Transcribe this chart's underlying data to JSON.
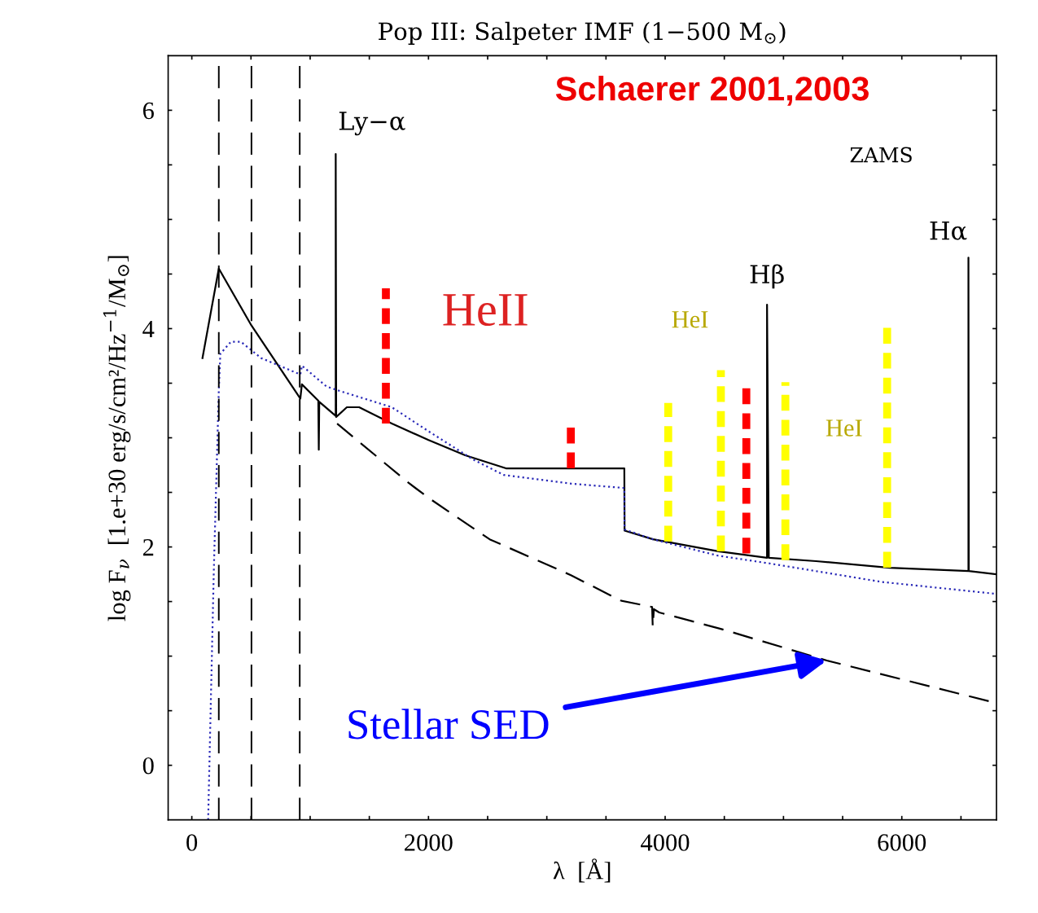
{
  "chart_data": {
    "type": "line",
    "title": "Pop III: Salpeter IMF (1−500 M$_{⊙}$)",
    "xlabel": "λ  [Å]",
    "ylabel": "log F$_{ν}$  [1.e+30 erg/s/cm²/Hz$^{−1}$/M$_{⊙}$]",
    "xlim": [
      -200,
      6800
    ],
    "ylim": [
      -0.5,
      6.5
    ],
    "xticks": [
      0,
      {
        "value": 500,
        "label": null
      },
      {
        "value": 1000,
        "label": null
      },
      {
        "value": 1500,
        "label": null
      },
      2000,
      {
        "value": 2500,
        "label": null
      },
      {
        "value": 3000,
        "label": null
      },
      {
        "value": 3500,
        "label": null
      },
      4000,
      {
        "value": 4500,
        "label": null
      },
      {
        "value": 5000,
        "label": null
      },
      {
        "value": 5500,
        "label": null
      },
      6000,
      {
        "value": 6500,
        "label": null
      }
    ],
    "yticks": [
      0,
      {
        "value": 0.5,
        "label": null
      },
      {
        "value": 1,
        "label": null
      },
      {
        "value": 1.5,
        "label": null
      },
      2,
      {
        "value": 2.5,
        "label": null
      },
      {
        "value": 3,
        "label": null
      },
      {
        "value": 3.5,
        "label": null
      },
      4,
      {
        "value": 4.5,
        "label": null
      },
      {
        "value": 5,
        "label": null
      },
      {
        "value": 5.5,
        "label": null
      },
      6
    ],
    "grid": false,
    "series": [
      {
        "color": "#000000",
        "line_style": "solid",
        "x": [
          90,
          228,
          503,
          917,
          930,
          1069,
          1073,
          1077,
          1216,
          1216,
          1220,
          1310,
          1414,
          1690,
          2000,
          2310,
          2655,
          3207,
          3655,
          3657,
          3897,
          4448,
          4861,
          4861,
          4876,
          5276,
          5897,
          6563,
          6563,
          6566,
          6800
        ],
        "values": [
          3.73,
          4.55,
          4.03,
          3.36,
          3.49,
          3.34,
          2.89,
          3.33,
          3.2,
          5.6,
          3.19,
          3.28,
          3.28,
          3.13,
          2.98,
          2.84,
          2.72,
          2.72,
          2.72,
          2.15,
          2.07,
          1.96,
          1.9,
          4.22,
          1.9,
          1.87,
          1.81,
          1.78,
          4.65,
          1.78,
          1.75
        ]
      },
      {
        "color": "#2a2ab8",
        "line_style": "dotted",
        "x": [
          138,
          186,
          228,
          241,
          331,
          414,
          586,
          917,
          931,
          1138,
          1276,
          1690,
          2000,
          2379,
          2634,
          3207,
          3655,
          3657,
          3897,
          4448,
          4876,
          5828,
          6800
        ],
        "values": [
          -0.5,
          1.79,
          3.43,
          3.77,
          3.88,
          3.88,
          3.73,
          3.58,
          3.66,
          3.47,
          3.42,
          3.28,
          3.06,
          2.8,
          2.66,
          2.58,
          2.54,
          2.16,
          2.07,
          1.92,
          1.85,
          1.68,
          1.57
        ]
      },
      {
        "color": "#000000",
        "line_style": "dashed",
        "x": [
          1228,
          1828,
          2000,
          2517,
          3207,
          3621,
          3890,
          3895,
          3905,
          3950,
          4469,
          5366,
          6800
        ],
        "values": [
          3.13,
          2.59,
          2.45,
          2.07,
          1.74,
          1.51,
          1.45,
          1.27,
          1.43,
          1.4,
          1.25,
          0.96,
          0.57
        ]
      },
      {
        "color": "#ff0000",
        "line_style": "dashed",
        "x": [
          1640,
          1640
        ],
        "values": [
          3.13,
          4.37
        ]
      },
      {
        "color": "#ff0000",
        "line_style": "dashed",
        "x": [
          3203,
          3203
        ],
        "values": [
          2.72,
          3.13
        ]
      },
      {
        "color": "#ff0000",
        "line_style": "dashed",
        "x": [
          4686,
          4686
        ],
        "values": [
          1.94,
          3.47
        ]
      },
      {
        "color": "#ffff00",
        "line_style": "dashed",
        "x": [
          4026,
          4026
        ],
        "values": [
          2.05,
          3.32
        ]
      },
      {
        "color": "#ffff00",
        "line_style": "dashed",
        "x": [
          4471,
          4471
        ],
        "values": [
          1.96,
          3.62
        ]
      },
      {
        "color": "#ffff00",
        "line_style": "dashed",
        "x": [
          5016,
          5016
        ],
        "values": [
          1.88,
          3.51
        ]
      },
      {
        "color": "#ffff00",
        "line_style": "dashed",
        "x": [
          5876,
          5876
        ],
        "values": [
          1.81,
          4.07
        ]
      }
    ],
    "ref_lines": [
      {
        "axis": "x",
        "value": 228,
        "color": "#000000",
        "line_style": "dashed"
      },
      {
        "axis": "x",
        "value": 504,
        "color": "#000000",
        "line_style": "dashed"
      },
      {
        "axis": "x",
        "value": 912,
        "color": "#000000",
        "line_style": "dashed"
      }
    ],
    "annotations": [
      "Schaerer 2001,2003",
      "ZAMS",
      "HeII",
      "HeI",
      "HeI",
      {
        "text": "Ly−α",
        "x": 1216,
        "y": 5.6
      },
      {
        "text": "Hβ",
        "x": 4861,
        "y": 4.22
      },
      {
        "text": "Hα",
        "x": 6563,
        "y": 4.65
      },
      {
        "text": "Stellar SED",
        "x": 5366,
        "y": 0.96
      }
    ]
  }
}
